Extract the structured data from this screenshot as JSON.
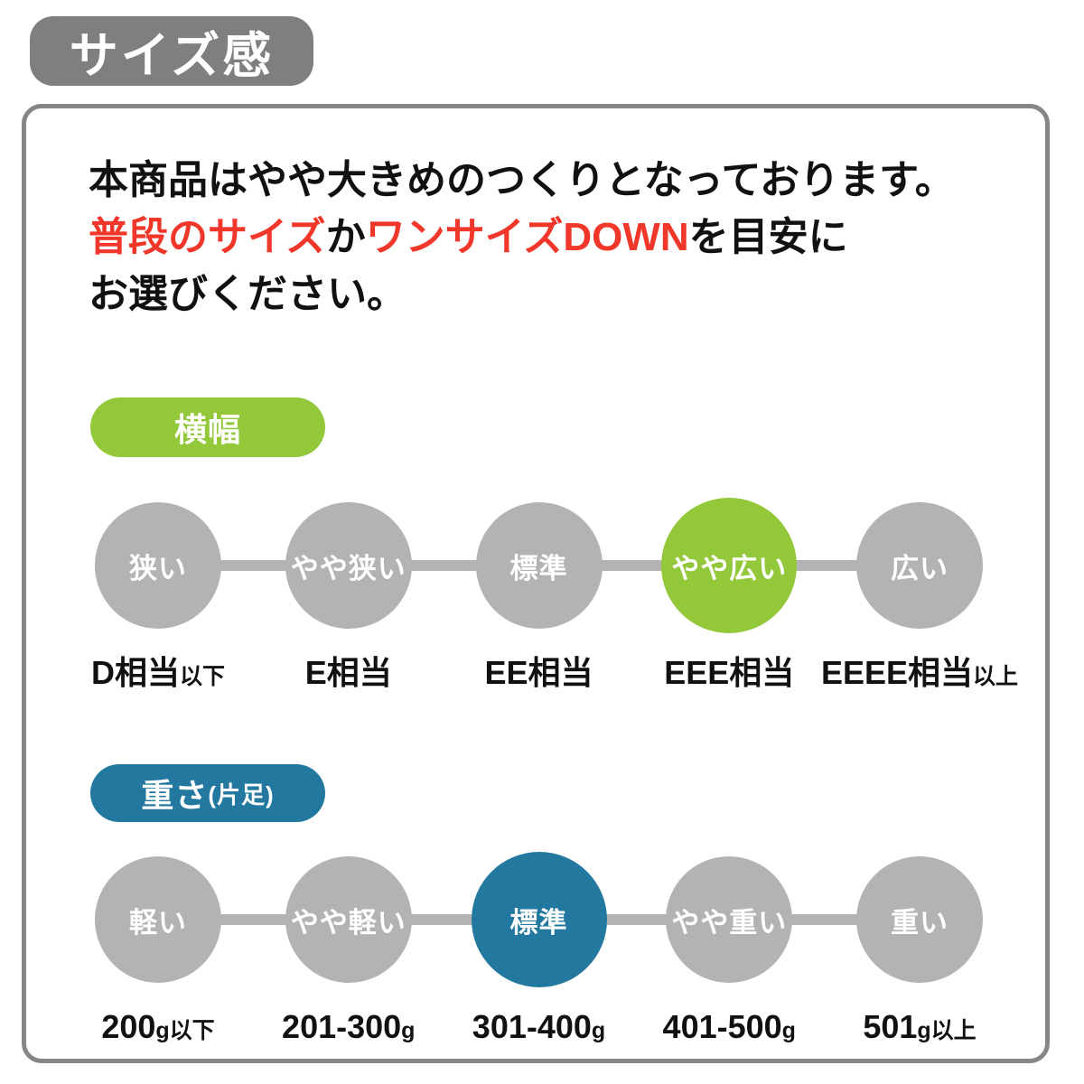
{
  "colors": {
    "accent-green": "#93c83a",
    "accent-blue": "#22789f",
    "circle-gray": "#b3b3b3",
    "badge-gray": "#7f7f7f",
    "border-gray": "#868686",
    "alert-red": "#f0372a"
  },
  "title_badge": "サイズ感",
  "intro": {
    "line1": "本商品はやや大きめのつくりとなっております。",
    "line2_red1": "普段のサイズ",
    "line2_black1": "か",
    "line2_red2": "ワンサイズDOWN",
    "line2_black2": "を目安に",
    "line3": "お選びください。"
  },
  "width_scale": {
    "badge_label": "横幅",
    "items": [
      {
        "circle": "狭い",
        "label_main": "D相当",
        "label_small": "以下",
        "highlighted": false
      },
      {
        "circle": "やや狭い",
        "label_main": "E相当",
        "label_small": "",
        "highlighted": false
      },
      {
        "circle": "標準",
        "label_main": "EE相当",
        "label_small": "",
        "highlighted": false
      },
      {
        "circle": "やや広い",
        "label_main": "EEE相当",
        "label_small": "",
        "highlighted": true
      },
      {
        "circle": "広い",
        "label_main": "EEEE相当",
        "label_small": "以上",
        "highlighted": false
      }
    ]
  },
  "weight_scale": {
    "badge_label": "重さ",
    "badge_label_small": "(片足)",
    "items": [
      {
        "circle": "軽い",
        "label_main": "200",
        "label_small": "g以下",
        "highlighted": false
      },
      {
        "circle": "やや軽い",
        "label_main": "201-300",
        "label_small": "g",
        "highlighted": false
      },
      {
        "circle": "標準",
        "label_main": "301-400",
        "label_small": "g",
        "highlighted": true
      },
      {
        "circle": "やや重い",
        "label_main": "401-500",
        "label_small": "g",
        "highlighted": false
      },
      {
        "circle": "重い",
        "label_main": "501",
        "label_small": "g以上",
        "highlighted": false
      }
    ]
  }
}
